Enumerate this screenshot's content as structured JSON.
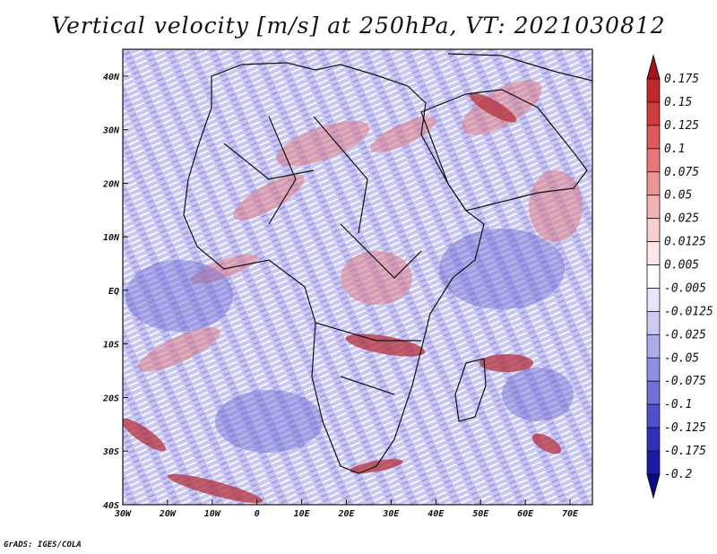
{
  "title": "Vertical velocity [m/s] at 250hPa, VT: 2021030812",
  "credit": "GrADS: IGES/COLA",
  "map": {
    "lon_range": [
      -30,
      75
    ],
    "lat_range": [
      -40,
      45
    ],
    "x_ticks": [
      {
        "value": -30,
        "label": "30W"
      },
      {
        "value": -20,
        "label": "20W"
      },
      {
        "value": -10,
        "label": "10W"
      },
      {
        "value": 0,
        "label": "0"
      },
      {
        "value": 10,
        "label": "10E"
      },
      {
        "value": 20,
        "label": "20E"
      },
      {
        "value": 30,
        "label": "30E"
      },
      {
        "value": 40,
        "label": "40E"
      },
      {
        "value": 50,
        "label": "50E"
      },
      {
        "value": 60,
        "label": "60E"
      },
      {
        "value": 70,
        "label": "70E"
      }
    ],
    "y_ticks": [
      {
        "value": 40,
        "label": "40N"
      },
      {
        "value": 30,
        "label": "30N"
      },
      {
        "value": 20,
        "label": "20N"
      },
      {
        "value": 10,
        "label": "10N"
      },
      {
        "value": 0,
        "label": "EQ"
      },
      {
        "value": -10,
        "label": "10S"
      },
      {
        "value": -20,
        "label": "20S"
      },
      {
        "value": -30,
        "label": "30S"
      },
      {
        "value": -40,
        "label": "40S"
      }
    ]
  },
  "colorbar": {
    "levels": [
      "0.175",
      "0.15",
      "0.125",
      "0.1",
      "0.075",
      "0.05",
      "0.025",
      "0.0125",
      "0.005",
      "-0.005",
      "-0.0125",
      "-0.025",
      "-0.05",
      "-0.075",
      "-0.1",
      "-0.125",
      "-0.175",
      "-0.2"
    ],
    "colors": [
      "#a8141c",
      "#c0282c",
      "#d23c3c",
      "#e05a5a",
      "#e87878",
      "#ee9696",
      "#f4b4b4",
      "#f8cfcf",
      "#fce8e8",
      "#ffffff",
      "#e6e6fa",
      "#cacaf2",
      "#acacea",
      "#8e8ee2",
      "#7070d8",
      "#5050cc",
      "#3030bc",
      "#1a1aa8",
      "#0a0a8c"
    ]
  }
}
